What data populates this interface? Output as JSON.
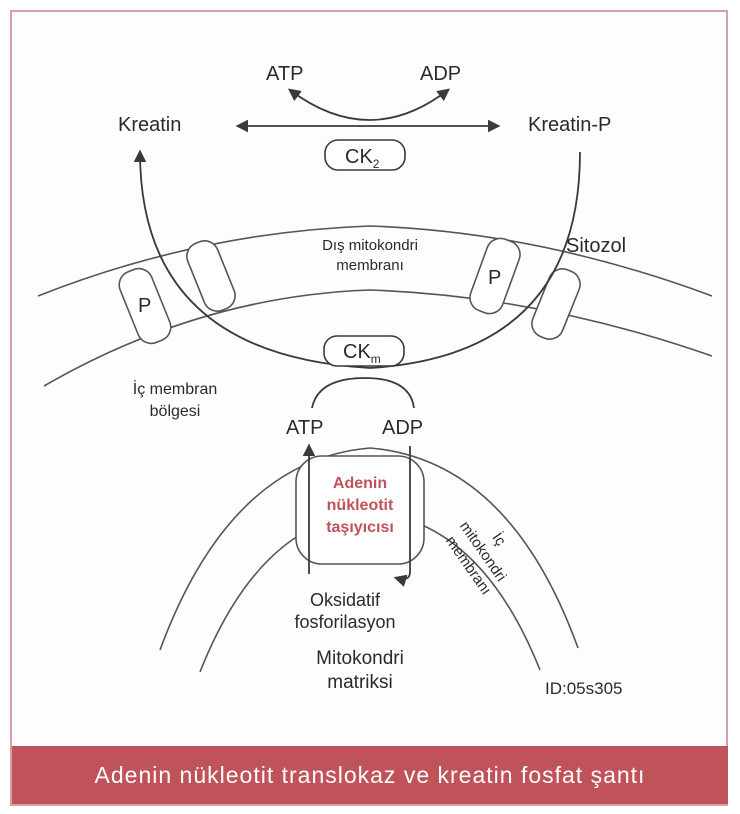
{
  "diagram": {
    "top": {
      "atp": "ATP",
      "adp": "ADP",
      "kreatin": "Kreatin",
      "kreatin_p": "Kreatin-P",
      "ck2": "CK",
      "ck2_sub": "2"
    },
    "outer_membrane": {
      "line1": "Dış mitokondri",
      "line2": "membranı",
      "porin_left": "P",
      "porin_right": "P"
    },
    "sitozol": "Sitozol",
    "ckm": "CK",
    "ckm_sub": "m",
    "inner_region": {
      "line1": "İç membran",
      "line2": "bölgesi"
    },
    "bottom": {
      "atp": "ATP",
      "adp": "ADP"
    },
    "carrier": {
      "line1": "Adenin",
      "line2": "nükleotit",
      "line3": "taşıyıcısı"
    },
    "inner_membrane": {
      "line1": "İç",
      "line2": "mitokondri",
      "line3": "membranı"
    },
    "oxphos": {
      "line1": "Oksidatif",
      "line2": "fosforilasyon"
    },
    "matrix": {
      "line1": "Mitokondri",
      "line2": "matriksi"
    },
    "id": "ID:05s305"
  },
  "caption": "Adenin nükleotit translokaz ve kreatin fosfat şantı",
  "colors": {
    "caption_bg": "#c0525a",
    "carrier_text": "#c0525a",
    "line": "#3a3a3a"
  }
}
